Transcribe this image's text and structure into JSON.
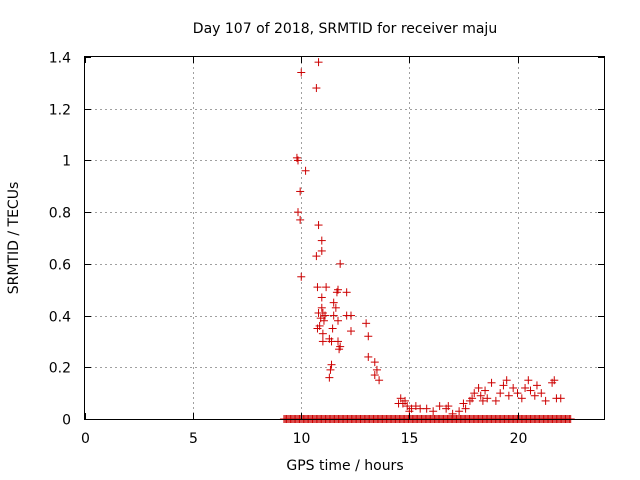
{
  "chart_data": {
    "type": "scatter",
    "title": "Day 107 of 2018, SRMTID for receiver maju",
    "xlabel": "GPS time / hours",
    "ylabel": "SRMTID / TECUs",
    "xlim": [
      0,
      24
    ],
    "ylim": [
      0,
      1.4
    ],
    "xticks": [
      0,
      5,
      10,
      15,
      20
    ],
    "yticks": [
      0,
      0.2,
      0.4,
      0.6,
      0.8,
      1,
      1.2,
      1.4
    ],
    "xtick_labels": [
      "0",
      "5",
      "10",
      "15",
      "20"
    ],
    "ytick_labels": [
      "0",
      "0.2",
      "0.4",
      "0.6",
      "0.8",
      "1",
      "1.2",
      "1.4"
    ],
    "grid": true,
    "marker": "+",
    "series": [
      {
        "name": "SRMTID",
        "color": "#cc0000",
        "points": [
          [
            9.8,
            1.01
          ],
          [
            9.85,
            1.0
          ],
          [
            10.0,
            1.34
          ],
          [
            10.8,
            1.38
          ],
          [
            10.7,
            1.28
          ],
          [
            10.2,
            0.96
          ],
          [
            9.95,
            0.88
          ],
          [
            9.85,
            0.8
          ],
          [
            9.95,
            0.77
          ],
          [
            10.8,
            0.75
          ],
          [
            10.95,
            0.69
          ],
          [
            10.95,
            0.65
          ],
          [
            10.7,
            0.63
          ],
          [
            11.8,
            0.6
          ],
          [
            10.0,
            0.55
          ],
          [
            10.75,
            0.51
          ],
          [
            11.15,
            0.51
          ],
          [
            11.7,
            0.5
          ],
          [
            12.1,
            0.49
          ],
          [
            11.65,
            0.49
          ],
          [
            10.95,
            0.47
          ],
          [
            11.5,
            0.45
          ],
          [
            11.6,
            0.43
          ],
          [
            10.95,
            0.43
          ],
          [
            11.0,
            0.41
          ],
          [
            10.8,
            0.41
          ],
          [
            11.1,
            0.4
          ],
          [
            11.5,
            0.4
          ],
          [
            12.1,
            0.4
          ],
          [
            10.9,
            0.39
          ],
          [
            11.7,
            0.38
          ],
          [
            12.3,
            0.4
          ],
          [
            11.05,
            0.38
          ],
          [
            13.0,
            0.37
          ],
          [
            10.85,
            0.36
          ],
          [
            10.75,
            0.35
          ],
          [
            11.45,
            0.35
          ],
          [
            12.3,
            0.34
          ],
          [
            11.0,
            0.33
          ],
          [
            13.1,
            0.32
          ],
          [
            11.3,
            0.31
          ],
          [
            11.4,
            0.3
          ],
          [
            11.7,
            0.3
          ],
          [
            11.0,
            0.3
          ],
          [
            11.8,
            0.28
          ],
          [
            11.75,
            0.27
          ],
          [
            13.1,
            0.24
          ],
          [
            13.4,
            0.22
          ],
          [
            11.4,
            0.21
          ],
          [
            11.35,
            0.19
          ],
          [
            13.5,
            0.19
          ],
          [
            13.4,
            0.17
          ],
          [
            11.3,
            0.16
          ],
          [
            13.6,
            0.15
          ],
          [
            14.6,
            0.08
          ],
          [
            14.7,
            0.06
          ],
          [
            14.5,
            0.06
          ],
          [
            14.8,
            0.07
          ],
          [
            14.9,
            0.05
          ],
          [
            15.1,
            0.04
          ],
          [
            15.3,
            0.05
          ],
          [
            15.0,
            0.03
          ],
          [
            15.5,
            0.04
          ],
          [
            15.8,
            0.04
          ],
          [
            16.4,
            0.05
          ],
          [
            16.7,
            0.04
          ],
          [
            17.0,
            0.02
          ],
          [
            17.3,
            0.03
          ],
          [
            17.5,
            0.06
          ],
          [
            17.6,
            0.04
          ],
          [
            17.8,
            0.07
          ],
          [
            17.9,
            0.08
          ],
          [
            18.0,
            0.1
          ],
          [
            18.2,
            0.12
          ],
          [
            18.3,
            0.09
          ],
          [
            18.5,
            0.11
          ],
          [
            18.6,
            0.08
          ],
          [
            18.8,
            0.14
          ],
          [
            19.0,
            0.07
          ],
          [
            19.2,
            0.1
          ],
          [
            19.35,
            0.13
          ],
          [
            19.5,
            0.15
          ],
          [
            19.6,
            0.09
          ],
          [
            19.8,
            0.12
          ],
          [
            20.0,
            0.1
          ],
          [
            20.2,
            0.08
          ],
          [
            20.35,
            0.12
          ],
          [
            20.5,
            0.15
          ],
          [
            20.6,
            0.11
          ],
          [
            20.8,
            0.09
          ],
          [
            20.9,
            0.13
          ],
          [
            21.1,
            0.1
          ],
          [
            21.3,
            0.07
          ],
          [
            21.6,
            0.14
          ],
          [
            21.7,
            0.15
          ],
          [
            21.8,
            0.08
          ],
          [
            22.0,
            0.08
          ],
          [
            16.1,
            0.03
          ],
          [
            16.8,
            0.05
          ],
          [
            18.4,
            0.07
          ]
        ],
        "zero_range": [
          9.2,
          22.5
        ]
      }
    ]
  }
}
